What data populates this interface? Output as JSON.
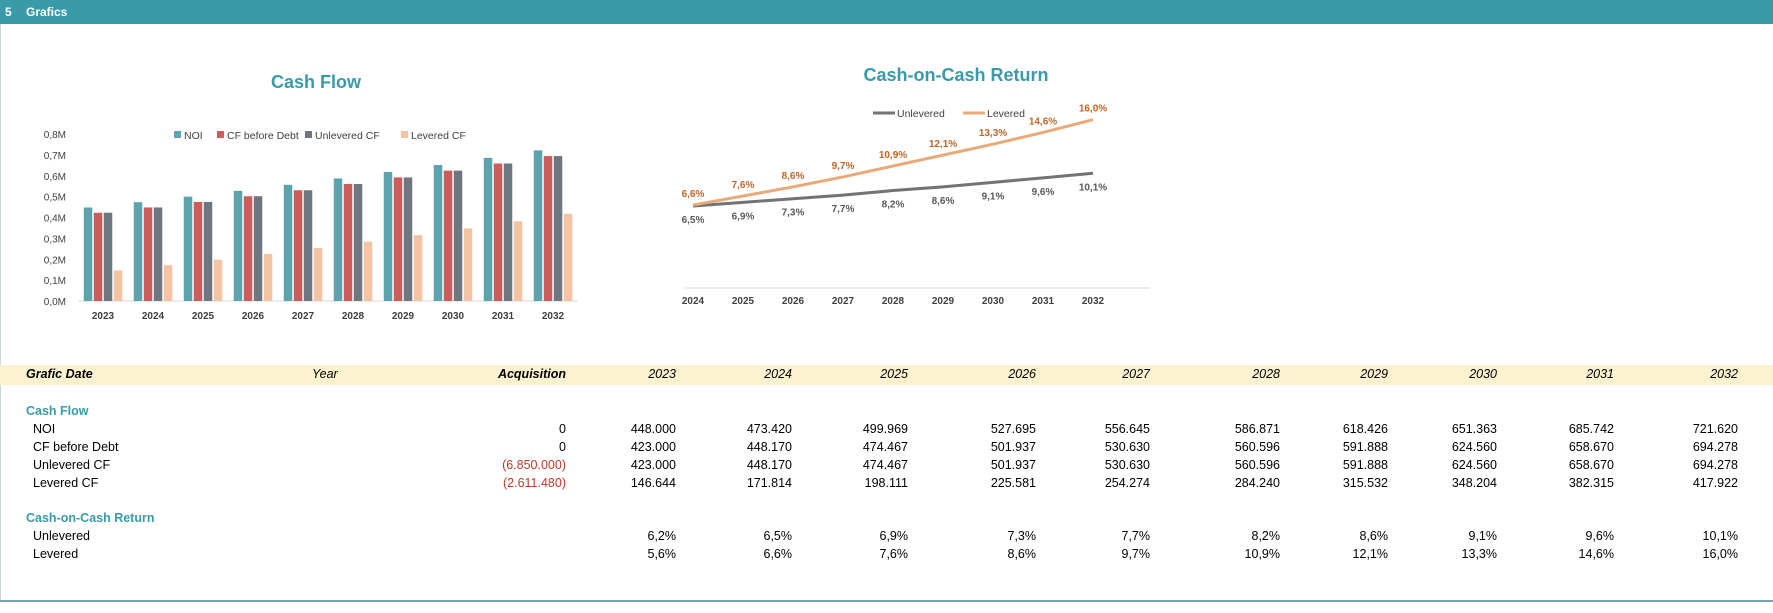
{
  "section": {
    "number": "5",
    "title": "Grafics"
  },
  "colors": {
    "teal": "#3a9aa7",
    "noi": "#5ba3ad",
    "cf_before_debt": "#cd5c5c",
    "unlevered": "#6e7680",
    "levered": "#f4c4a2",
    "levered_line": "#e8aa78",
    "unlevered_line": "#737373",
    "negative": "#c0392b",
    "header_band": "#fdf2cf"
  },
  "chart_data": [
    {
      "type": "bar",
      "title": "Cash Flow",
      "categories": [
        "2023",
        "2024",
        "2025",
        "2026",
        "2027",
        "2028",
        "2029",
        "2030",
        "2031",
        "2032"
      ],
      "series": [
        {
          "name": "NOI",
          "values": [
            448000,
            473420,
            499969,
            527695,
            556645,
            586871,
            618426,
            651363,
            685742,
            721620
          ]
        },
        {
          "name": "CF before Debt",
          "values": [
            423000,
            448170,
            474467,
            501937,
            530630,
            560596,
            591888,
            624560,
            658670,
            694278
          ]
        },
        {
          "name": "Unlevered CF",
          "values": [
            423000,
            448170,
            474467,
            501937,
            530630,
            560596,
            591888,
            624560,
            658670,
            694278
          ]
        },
        {
          "name": "Levered CF",
          "values": [
            146644,
            171814,
            198111,
            225581,
            254274,
            284240,
            315532,
            348204,
            382315,
            417922
          ]
        }
      ],
      "yticks": [
        "0,0M",
        "0,1M",
        "0,2M",
        "0,3M",
        "0,4M",
        "0,5M",
        "0,6M",
        "0,7M",
        "0,8M"
      ],
      "ylim": [
        0,
        800000
      ],
      "legend": "top"
    },
    {
      "type": "line",
      "title": "Cash-on-Cash Return",
      "categories": [
        "2024",
        "2025",
        "2026",
        "2027",
        "2028",
        "2029",
        "2030",
        "2031",
        "2032"
      ],
      "series": [
        {
          "name": "Unlevered",
          "values": [
            6.5,
            6.9,
            7.3,
            7.7,
            8.2,
            8.6,
            9.1,
            9.6,
            10.1
          ],
          "labels": [
            "6,5%",
            "6,9%",
            "7,3%",
            "7,7%",
            "8,2%",
            "8,6%",
            "9,1%",
            "9,6%",
            "10,1%"
          ]
        },
        {
          "name": "Levered",
          "values": [
            6.6,
            7.6,
            8.6,
            9.7,
            10.9,
            12.1,
            13.3,
            14.6,
            16.0
          ],
          "labels": [
            "6,6%",
            "7,6%",
            "8,6%",
            "9,7%",
            "10,9%",
            "12,1%",
            "13,3%",
            "14,6%",
            "16,0%"
          ]
        }
      ],
      "legend": "top"
    }
  ],
  "table": {
    "header": {
      "grafic_date": "Grafic Date",
      "year": "Year",
      "acquisition": "Acquisition",
      "years": [
        "2023",
        "2024",
        "2025",
        "2026",
        "2027",
        "2028",
        "2029",
        "2030",
        "2031",
        "2032"
      ]
    },
    "cash_flow_section": "Cash Flow",
    "cash_flow_rows": [
      {
        "label": "NOI",
        "acquisition": "0",
        "values": [
          "448.000",
          "473.420",
          "499.969",
          "527.695",
          "556.645",
          "586.871",
          "618.426",
          "651.363",
          "685.742",
          "721.620"
        ]
      },
      {
        "label": "CF before Debt",
        "acquisition": "0",
        "values": [
          "423.000",
          "448.170",
          "474.467",
          "501.937",
          "530.630",
          "560.596",
          "591.888",
          "624.560",
          "658.670",
          "694.278"
        ]
      },
      {
        "label": "Unlevered CF",
        "acquisition": "(6.850.000)",
        "values": [
          "423.000",
          "448.170",
          "474.467",
          "501.937",
          "530.630",
          "560.596",
          "591.888",
          "624.560",
          "658.670",
          "694.278"
        ]
      },
      {
        "label": "Levered CF",
        "acquisition": "(2.611.480)",
        "values": [
          "146.644",
          "171.814",
          "198.111",
          "225.581",
          "254.274",
          "284.240",
          "315.532",
          "348.204",
          "382.315",
          "417.922"
        ]
      }
    ],
    "coc_section": "Cash-on-Cash Return",
    "coc_rows": [
      {
        "label": "Unlevered",
        "values": [
          "6,2%",
          "6,5%",
          "6,9%",
          "7,3%",
          "7,7%",
          "8,2%",
          "8,6%",
          "9,1%",
          "9,6%",
          "10,1%"
        ]
      },
      {
        "label": "Levered",
        "values": [
          "5,6%",
          "6,6%",
          "7,6%",
          "8,6%",
          "9,7%",
          "10,9%",
          "12,1%",
          "13,3%",
          "14,6%",
          "16,0%"
        ]
      }
    ]
  }
}
